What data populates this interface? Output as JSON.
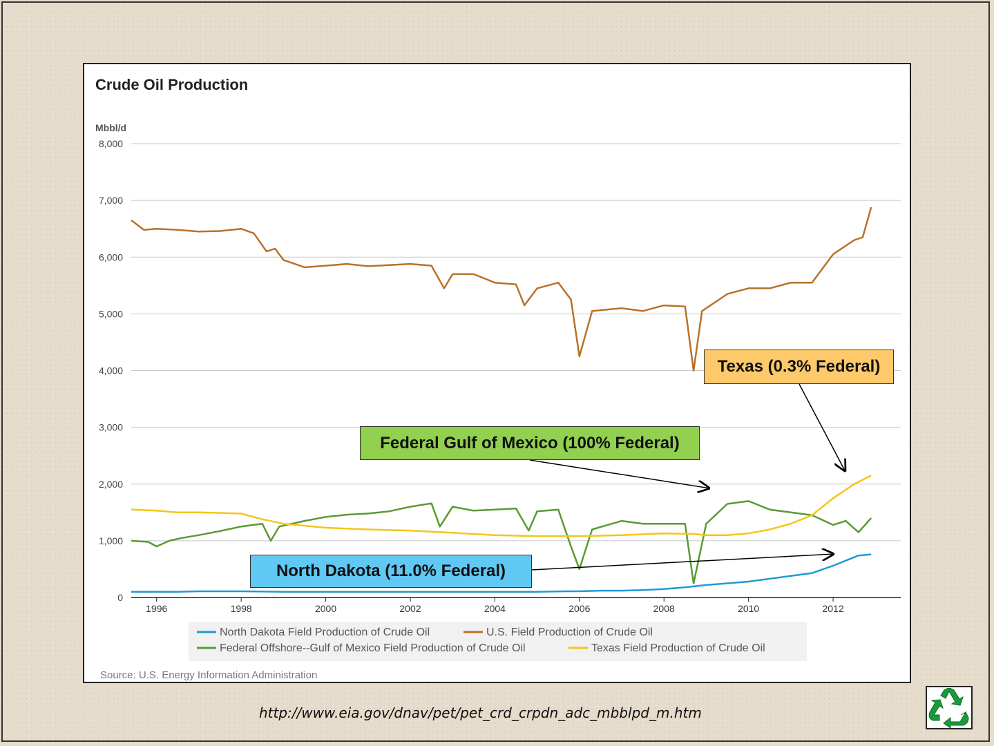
{
  "chart_data": {
    "type": "line",
    "title": "Crude Oil Production",
    "unit_label": "Mbbl/d",
    "source": "Source: U.S. Energy Information Administration",
    "ylim": [
      0,
      8000
    ],
    "y_ticks": [
      "0",
      "1,000",
      "2,000",
      "3,000",
      "4,000",
      "5,000",
      "6,000",
      "7,000",
      "8,000"
    ],
    "x_range": [
      1995.4,
      2013.6
    ],
    "x_ticks": [
      "1996",
      "1998",
      "2000",
      "2002",
      "2004",
      "2006",
      "2008",
      "2010",
      "2012"
    ],
    "grid": "horizontal",
    "legend_position": "bottom",
    "series": [
      {
        "name": "North Dakota Field Production of Crude Oil",
        "color": "#1f9ad6",
        "points": [
          [
            1995.4,
            100
          ],
          [
            1996,
            100
          ],
          [
            1996.5,
            100
          ],
          [
            1997,
            110
          ],
          [
            1998,
            110
          ],
          [
            1999,
            100
          ],
          [
            2000,
            100
          ],
          [
            2001,
            100
          ],
          [
            2002,
            100
          ],
          [
            2003,
            100
          ],
          [
            2004,
            100
          ],
          [
            2005,
            100
          ],
          [
            2005.7,
            110
          ],
          [
            2006,
            110
          ],
          [
            2006.5,
            120
          ],
          [
            2007,
            120
          ],
          [
            2007.5,
            130
          ],
          [
            2008,
            150
          ],
          [
            2008.5,
            180
          ],
          [
            2009,
            220
          ],
          [
            2009.5,
            250
          ],
          [
            2010,
            280
          ],
          [
            2010.5,
            330
          ],
          [
            2011,
            380
          ],
          [
            2011.5,
            430
          ],
          [
            2012,
            560
          ],
          [
            2012.4,
            680
          ],
          [
            2012.6,
            740
          ],
          [
            2012.9,
            760
          ]
        ]
      },
      {
        "name": "U.S. Field Production of Crude Oil",
        "color": "#b8712a",
        "points": [
          [
            1995.4,
            6650
          ],
          [
            1995.7,
            6480
          ],
          [
            1996,
            6500
          ],
          [
            1996.5,
            6480
          ],
          [
            1997,
            6450
          ],
          [
            1997.5,
            6460
          ],
          [
            1998,
            6500
          ],
          [
            1998.3,
            6420
          ],
          [
            1998.6,
            6100
          ],
          [
            1998.8,
            6150
          ],
          [
            1999,
            5950
          ],
          [
            1999.5,
            5820
          ],
          [
            2000,
            5850
          ],
          [
            2000.5,
            5880
          ],
          [
            2001,
            5840
          ],
          [
            2001.5,
            5860
          ],
          [
            2002,
            5880
          ],
          [
            2002.5,
            5850
          ],
          [
            2002.8,
            5450
          ],
          [
            2003,
            5700
          ],
          [
            2003.5,
            5700
          ],
          [
            2004,
            5550
          ],
          [
            2004.5,
            5520
          ],
          [
            2004.7,
            5150
          ],
          [
            2005,
            5450
          ],
          [
            2005.5,
            5550
          ],
          [
            2005.8,
            5250
          ],
          [
            2006,
            4250
          ],
          [
            2006.3,
            5050
          ],
          [
            2007,
            5100
          ],
          [
            2007.5,
            5050
          ],
          [
            2008,
            5150
          ],
          [
            2008.5,
            5130
          ],
          [
            2008.7,
            4000
          ],
          [
            2008.9,
            5050
          ],
          [
            2009.5,
            5350
          ],
          [
            2010,
            5450
          ],
          [
            2010.5,
            5450
          ],
          [
            2011,
            5550
          ],
          [
            2011.5,
            5550
          ],
          [
            2012,
            6050
          ],
          [
            2012.5,
            6300
          ],
          [
            2012.7,
            6350
          ],
          [
            2012.9,
            6880
          ]
        ]
      },
      {
        "name": "Federal Offshore--Gulf of Mexico Field Production of Crude Oil",
        "color": "#5a9a32",
        "points": [
          [
            1995.4,
            1000
          ],
          [
            1995.8,
            980
          ],
          [
            1996,
            900
          ],
          [
            1996.3,
            1000
          ],
          [
            1996.6,
            1050
          ],
          [
            1997,
            1100
          ],
          [
            1997.5,
            1170
          ],
          [
            1998,
            1250
          ],
          [
            1998.5,
            1300
          ],
          [
            1998.7,
            1000
          ],
          [
            1998.9,
            1250
          ],
          [
            1999.5,
            1350
          ],
          [
            2000,
            1420
          ],
          [
            2000.5,
            1460
          ],
          [
            2001,
            1480
          ],
          [
            2001.5,
            1520
          ],
          [
            2002,
            1600
          ],
          [
            2002.5,
            1660
          ],
          [
            2002.7,
            1250
          ],
          [
            2003,
            1600
          ],
          [
            2003.5,
            1530
          ],
          [
            2004,
            1550
          ],
          [
            2004.5,
            1570
          ],
          [
            2004.8,
            1180
          ],
          [
            2005,
            1520
          ],
          [
            2005.5,
            1550
          ],
          [
            2005.8,
            900
          ],
          [
            2006,
            500
          ],
          [
            2006.3,
            1200
          ],
          [
            2007,
            1350
          ],
          [
            2007.5,
            1300
          ],
          [
            2008,
            1300
          ],
          [
            2008.5,
            1300
          ],
          [
            2008.7,
            250
          ],
          [
            2009,
            1300
          ],
          [
            2009.5,
            1650
          ],
          [
            2010,
            1700
          ],
          [
            2010.5,
            1550
          ],
          [
            2011,
            1500
          ],
          [
            2011.5,
            1450
          ],
          [
            2012,
            1280
          ],
          [
            2012.3,
            1350
          ],
          [
            2012.6,
            1150
          ],
          [
            2012.9,
            1400
          ]
        ]
      },
      {
        "name": "Texas Field Production of Crude Oil",
        "color": "#f5c518",
        "points": [
          [
            1995.4,
            1550
          ],
          [
            1996,
            1530
          ],
          [
            1996.5,
            1500
          ],
          [
            1997,
            1500
          ],
          [
            1998,
            1480
          ],
          [
            1998.5,
            1380
          ],
          [
            1999,
            1300
          ],
          [
            2000,
            1230
          ],
          [
            2001,
            1200
          ],
          [
            2002,
            1180
          ],
          [
            2003,
            1140
          ],
          [
            2004,
            1100
          ],
          [
            2005,
            1080
          ],
          [
            2006,
            1080
          ],
          [
            2007,
            1100
          ],
          [
            2008,
            1130
          ],
          [
            2008.7,
            1120
          ],
          [
            2009,
            1100
          ],
          [
            2009.5,
            1100
          ],
          [
            2010,
            1130
          ],
          [
            2010.5,
            1200
          ],
          [
            2011,
            1300
          ],
          [
            2011.5,
            1450
          ],
          [
            2012,
            1750
          ],
          [
            2012.5,
            2000
          ],
          [
            2012.9,
            2150
          ]
        ]
      }
    ]
  },
  "annotations": {
    "texas": "Texas (0.3% Federal)",
    "gulf": "Federal Gulf of Mexico (100% Federal)",
    "north_dakota": "North Dakota (11.0% Federal)"
  },
  "url": "http://www.eia.gov/dnav/pet/pet_crd_crpdn_adc_mbblpd_m.htm",
  "icons": [
    "recycle-icon"
  ]
}
